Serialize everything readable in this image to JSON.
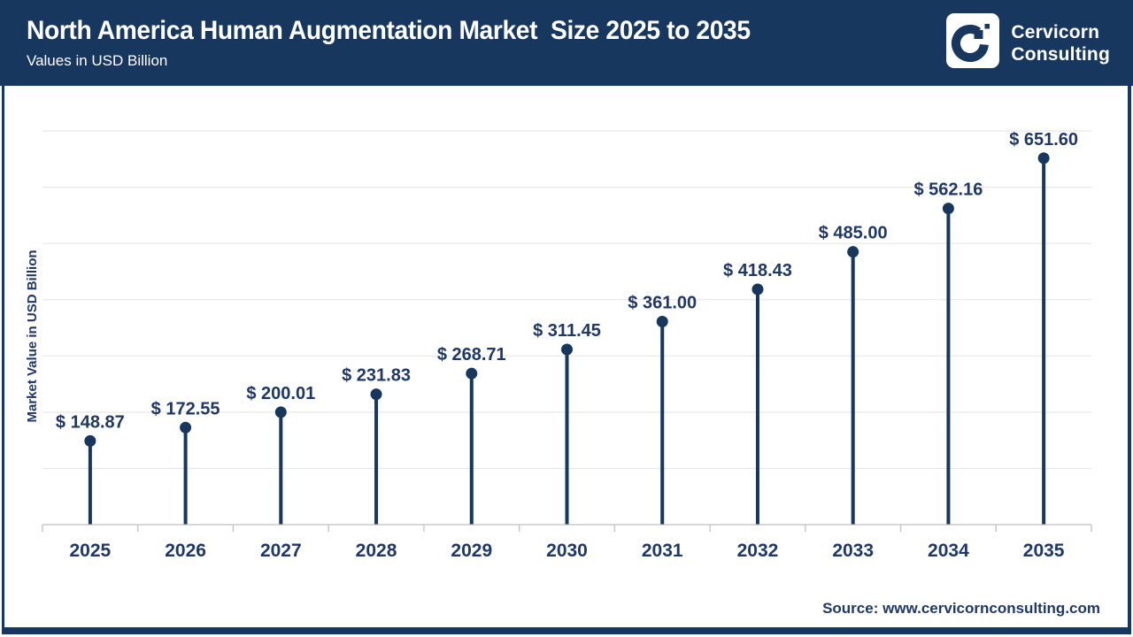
{
  "header": {
    "title": "North America Human Augmentation Market  Size 2025 to 2035",
    "subtitle": "Values in USD Billion",
    "brand_line1": "Cervicorn",
    "brand_line2": "Consulting",
    "logo_icon": "cervicorn-c-pixel-logo"
  },
  "chart_data": {
    "type": "bar",
    "variant": "lollipop-stem",
    "title": "North America Human Augmentation Market  Size 2025 to 2035",
    "subtitle": "Values in USD Billion",
    "categories": [
      "2025",
      "2026",
      "2027",
      "2028",
      "2029",
      "2030",
      "2031",
      "2032",
      "2033",
      "2034",
      "2035"
    ],
    "values": [
      148.87,
      172.55,
      200.01,
      231.83,
      268.71,
      311.45,
      361.0,
      418.43,
      485.0,
      562.16,
      651.6
    ],
    "data_labels": [
      "$ 148.87",
      "$ 172.55",
      "$ 200.01",
      "$ 231.83",
      "$ 268.71",
      "$ 311.45",
      "$ 361.00",
      "$ 418.43",
      "$ 485.00",
      "$ 562.16",
      "$ 651.60"
    ],
    "xlabel": "",
    "ylabel": "Market Value in USD Billion",
    "ylim": [
      0,
      700
    ],
    "grid_step": 100,
    "grid": "horizontal",
    "y_tick_labels_shown": false,
    "legend": "none"
  },
  "footer": {
    "source": "Source: www.cervicornconsulting.com"
  },
  "colors": {
    "navy": "#17375E",
    "text_navy": "#1F3864",
    "white": "#FFFFFF",
    "gridline": "#E3E3E3",
    "axis_line": "#C9C9C9"
  }
}
